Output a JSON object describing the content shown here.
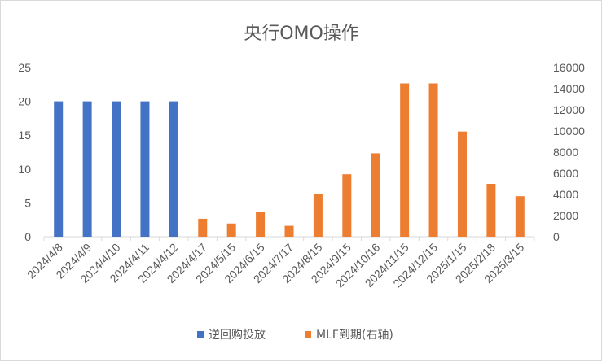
{
  "chart_data": {
    "type": "bar",
    "title": "央行OMO操作",
    "categories": [
      "2024/4/8",
      "2024/4/9",
      "2024/4/10",
      "2024/4/11",
      "2024/4/12",
      "2024/4/17",
      "2024/5/15",
      "2024/6/15",
      "2024/7/17",
      "2024/8/15",
      "2024/9/15",
      "2024/10/16",
      "2024/11/15",
      "2024/12/15",
      "2025/1/15",
      "2025/2/18",
      "2025/3/15"
    ],
    "y_left": {
      "ylim": [
        0,
        25
      ],
      "ticks": [
        "0",
        "5",
        "10",
        "15",
        "20",
        "25"
      ]
    },
    "y_right": {
      "ylim": [
        0,
        16000
      ],
      "ticks": [
        "0",
        "2000",
        "4000",
        "6000",
        "8000",
        "10000",
        "12000",
        "14000",
        "16000"
      ]
    },
    "series": [
      {
        "name": "逆回购投放",
        "axis": "left",
        "color": "#4472c4",
        "values": [
          20,
          20,
          20,
          20,
          20,
          null,
          null,
          null,
          null,
          null,
          null,
          null,
          null,
          null,
          null,
          null,
          null
        ]
      },
      {
        "name": "MLF到期(右轴)",
        "axis": "right",
        "color": "#ed7d31",
        "values": [
          null,
          null,
          null,
          null,
          null,
          1700,
          1250,
          2370,
          1030,
          4000,
          5910,
          7890,
          14500,
          14500,
          9950,
          5000,
          3830
        ]
      }
    ],
    "legend": "bottom",
    "grid": false
  }
}
